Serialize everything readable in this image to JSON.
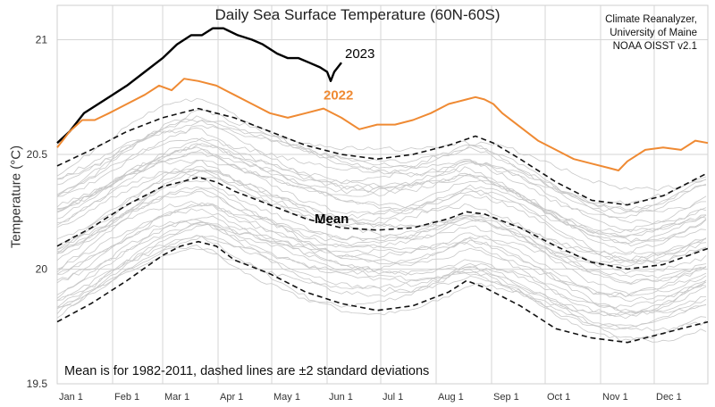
{
  "chart_data": {
    "type": "line",
    "title": "Daily Sea Surface Temperature (60N-60S)",
    "source": [
      "Climate Reanalyzer,",
      "University of Maine",
      "NOAA OISST v2.1"
    ],
    "ylabel": "Temperature (°C)",
    "xlabel": "",
    "note": "Mean is for 1982-2011, dashed lines are ±2 standard deviations",
    "x_unit": "day of year",
    "xlim": [
      1,
      365
    ],
    "ylim": [
      19.5,
      21.15
    ],
    "grid": true,
    "yticks": [
      19.5,
      20,
      20.5,
      21
    ],
    "ytick_labels": [
      "19.5",
      "20",
      "20.5",
      "21"
    ],
    "xticks": [
      1,
      32,
      60,
      91,
      121,
      152,
      182,
      213,
      244,
      274,
      305,
      335
    ],
    "xtick_labels": [
      "Jan 1",
      "Feb 1",
      "Mar 1",
      "Apr 1",
      "May 1",
      "Jun 1",
      "Jul 1",
      "Aug 1",
      "Sep 1",
      "Oct 1",
      "Nov 1",
      "Dec 1"
    ],
    "series": [
      {
        "name": "2023",
        "color": "#000000",
        "style": "solid",
        "x": [
          1,
          8,
          16,
          24,
          32,
          40,
          50,
          60,
          68,
          76,
          82,
          88,
          94,
          102,
          110,
          116,
          124,
          130,
          136,
          142,
          148,
          152,
          154,
          156,
          160
        ],
        "y": [
          20.55,
          20.6,
          20.68,
          20.72,
          20.76,
          20.8,
          20.86,
          20.92,
          20.98,
          21.02,
          21.02,
          21.05,
          21.05,
          21.02,
          21.0,
          20.98,
          20.94,
          20.92,
          20.92,
          20.9,
          20.88,
          20.86,
          20.82,
          20.86,
          20.9
        ]
      },
      {
        "name": "2022",
        "color": "#ef8a33",
        "style": "solid",
        "x": [
          1,
          8,
          15,
          22,
          30,
          40,
          50,
          58,
          65,
          72,
          80,
          90,
          100,
          110,
          120,
          130,
          140,
          150,
          160,
          170,
          180,
          190,
          200,
          210,
          220,
          230,
          235,
          240,
          245,
          250,
          260,
          270,
          280,
          290,
          300,
          310,
          315,
          320,
          330,
          340,
          350,
          358,
          365
        ],
        "y": [
          20.53,
          20.6,
          20.65,
          20.65,
          20.68,
          20.72,
          20.76,
          20.8,
          20.78,
          20.83,
          20.82,
          20.8,
          20.76,
          20.72,
          20.68,
          20.66,
          20.68,
          20.7,
          20.66,
          20.61,
          20.63,
          20.63,
          20.65,
          20.68,
          20.72,
          20.74,
          20.75,
          20.74,
          20.72,
          20.68,
          20.62,
          20.56,
          20.52,
          20.48,
          20.46,
          20.44,
          20.43,
          20.47,
          20.52,
          20.53,
          20.52,
          20.56,
          20.55
        ]
      },
      {
        "name": "Mean",
        "color": "#111111",
        "style": "dashed",
        "x": [
          1,
          20,
          40,
          60,
          70,
          80,
          90,
          100,
          120,
          140,
          160,
          180,
          200,
          220,
          230,
          240,
          260,
          280,
          300,
          320,
          340,
          365
        ],
        "y": [
          20.1,
          20.18,
          20.28,
          20.36,
          20.38,
          20.4,
          20.38,
          20.34,
          20.28,
          20.22,
          20.18,
          20.17,
          20.18,
          20.22,
          20.25,
          20.24,
          20.18,
          20.1,
          20.03,
          20.0,
          20.02,
          20.09
        ]
      },
      {
        "name": "",
        "color": "#111111",
        "style": "dashed",
        "x": [
          1,
          20,
          40,
          60,
          80,
          90,
          100,
          120,
          140,
          160,
          180,
          200,
          220,
          235,
          245,
          260,
          280,
          300,
          320,
          340,
          365
        ],
        "y": [
          20.45,
          20.52,
          20.6,
          20.66,
          20.7,
          20.68,
          20.66,
          20.6,
          20.54,
          20.5,
          20.48,
          20.5,
          20.54,
          20.58,
          20.55,
          20.48,
          20.38,
          20.3,
          20.28,
          20.32,
          20.42
        ]
      },
      {
        "name": "",
        "color": "#111111",
        "style": "dashed",
        "x": [
          1,
          20,
          40,
          60,
          70,
          80,
          90,
          100,
          120,
          140,
          160,
          180,
          200,
          220,
          230,
          240,
          260,
          280,
          300,
          320,
          340,
          365
        ],
        "y": [
          19.77,
          19.85,
          19.95,
          20.06,
          20.1,
          20.12,
          20.1,
          20.04,
          19.98,
          19.9,
          19.85,
          19.82,
          19.84,
          19.9,
          19.95,
          19.92,
          19.84,
          19.74,
          19.7,
          19.68,
          19.72,
          19.77
        ]
      }
    ],
    "annotations": [
      {
        "text": "2023",
        "x": 162,
        "y": 20.92,
        "color": "#000000"
      },
      {
        "text": "2022",
        "x": 150,
        "y": 20.74,
        "color": "#ef8a33"
      },
      {
        "text": "Mean",
        "x": 145,
        "y": 20.2,
        "color": "#000000"
      }
    ],
    "background_years": {
      "count": 40,
      "color": "#c8c8c8"
    }
  }
}
